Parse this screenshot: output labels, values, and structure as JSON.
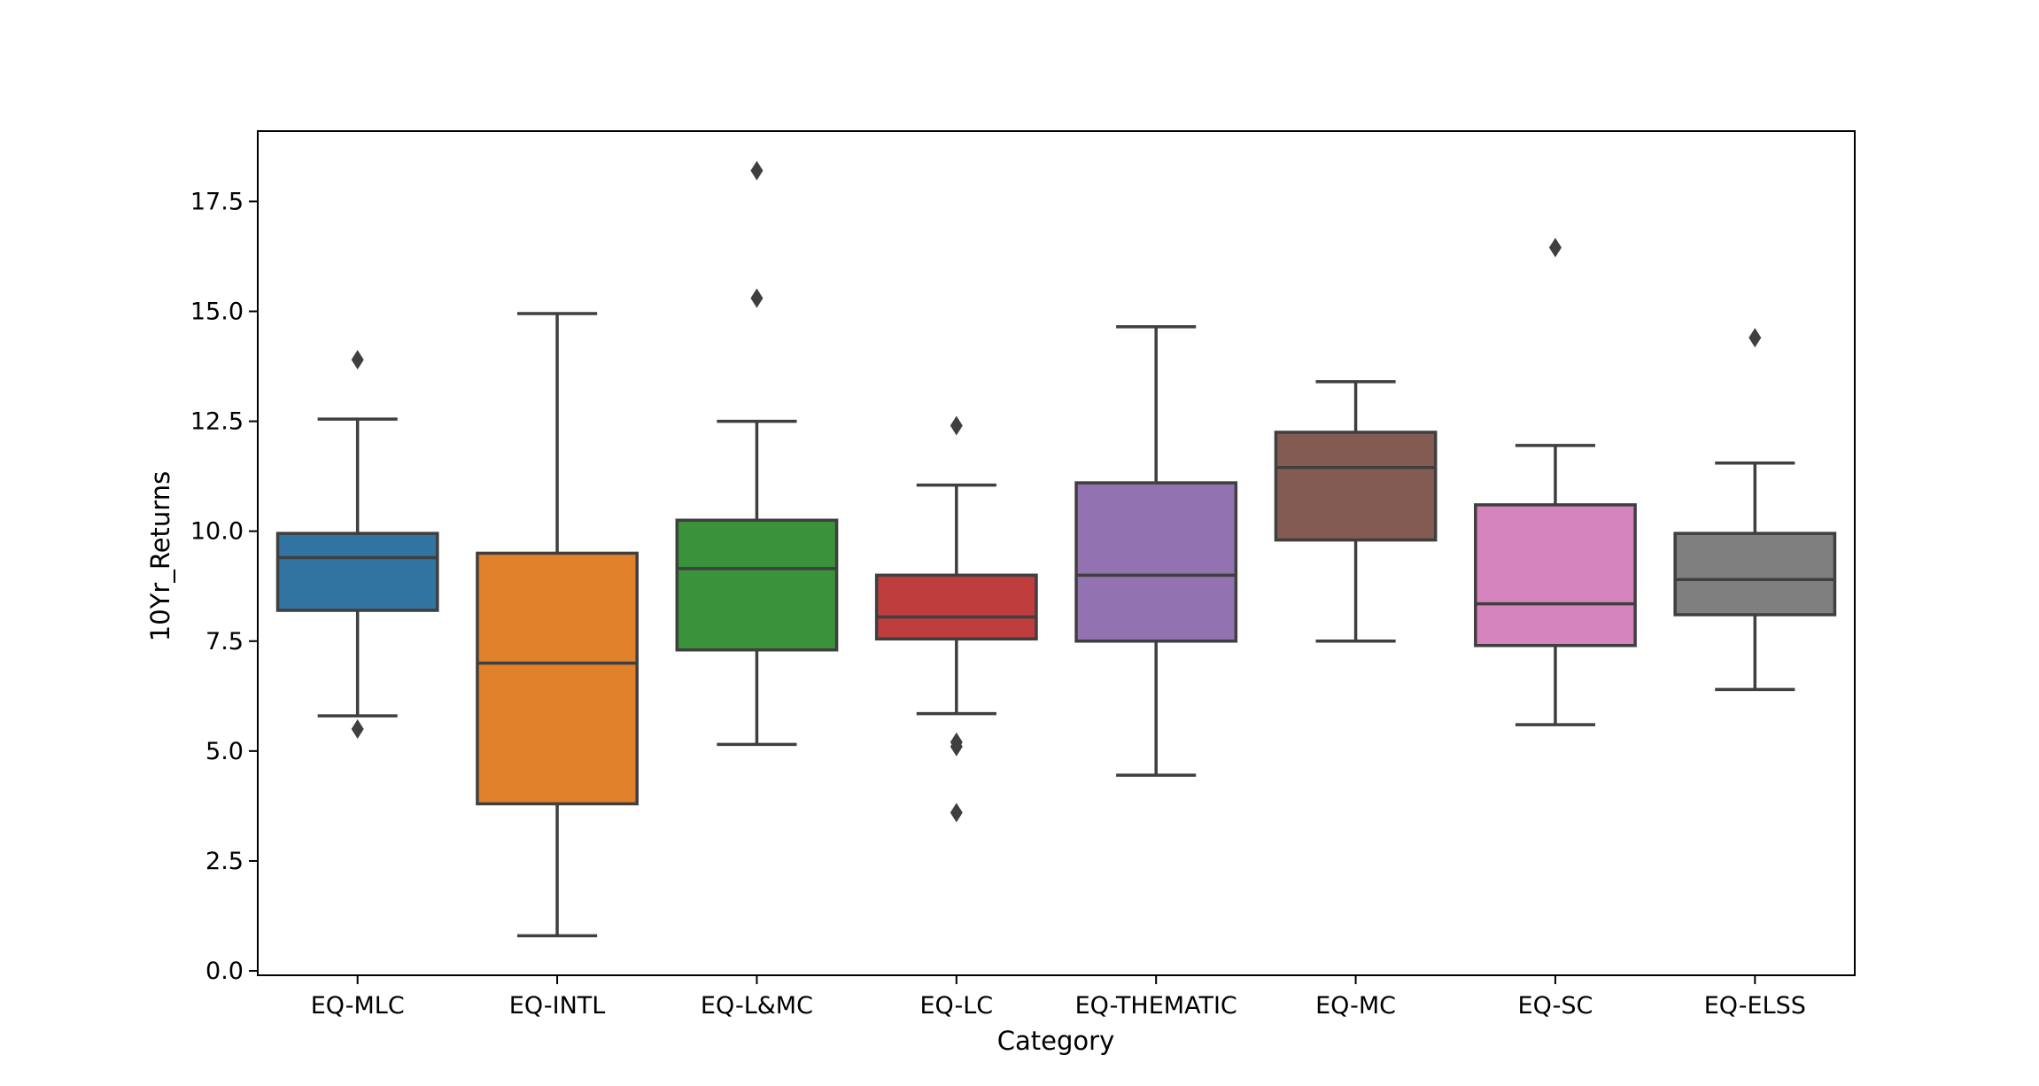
{
  "chart_data": {
    "type": "box",
    "xlabel": "Category",
    "ylabel": "10Yr_Returns",
    "ylim": [
      -0.1,
      19.1
    ],
    "yticks": [
      0.0,
      2.5,
      5.0,
      7.5,
      10.0,
      12.5,
      15.0,
      17.5
    ],
    "ytick_labels": [
      "0.0",
      "2.5",
      "5.0",
      "7.5",
      "10.0",
      "12.5",
      "15.0",
      "17.5"
    ],
    "grid": false,
    "categories": [
      "EQ-MLC",
      "EQ-INTL",
      "EQ-L&MC",
      "EQ-LC",
      "EQ-THEMATIC",
      "EQ-MC",
      "EQ-SC",
      "EQ-ELSS"
    ],
    "boxes": [
      {
        "category": "EQ-MLC",
        "whisker_low": 5.8,
        "q1": 8.2,
        "median": 9.4,
        "q3": 9.95,
        "whisker_high": 12.55,
        "outliers": [
          13.9,
          5.5
        ],
        "color": "#3274a1"
      },
      {
        "category": "EQ-INTL",
        "whisker_low": 0.8,
        "q1": 3.8,
        "median": 7.0,
        "q3": 9.5,
        "whisker_high": 14.95,
        "outliers": [],
        "color": "#e1812c"
      },
      {
        "category": "EQ-L&MC",
        "whisker_low": 5.15,
        "q1": 7.3,
        "median": 9.15,
        "q3": 10.25,
        "whisker_high": 12.5,
        "outliers": [
          18.2,
          15.3
        ],
        "color": "#3a923a"
      },
      {
        "category": "EQ-LC",
        "whisker_low": 5.85,
        "q1": 7.55,
        "median": 8.05,
        "q3": 9.0,
        "whisker_high": 11.05,
        "outliers": [
          12.4,
          5.2,
          5.1,
          3.6
        ],
        "color": "#c03d3e"
      },
      {
        "category": "EQ-THEMATIC",
        "whisker_low": 4.45,
        "q1": 7.5,
        "median": 9.0,
        "q3": 11.1,
        "whisker_high": 14.65,
        "outliers": [],
        "color": "#9372b2"
      },
      {
        "category": "EQ-MC",
        "whisker_low": 7.5,
        "q1": 9.8,
        "median": 11.45,
        "q3": 12.25,
        "whisker_high": 13.4,
        "outliers": [],
        "color": "#845b53"
      },
      {
        "category": "EQ-SC",
        "whisker_low": 5.6,
        "q1": 7.4,
        "median": 8.35,
        "q3": 10.6,
        "whisker_high": 11.95,
        "outliers": [
          16.45
        ],
        "color": "#d684bd"
      },
      {
        "category": "EQ-ELSS",
        "whisker_low": 6.4,
        "q1": 8.1,
        "median": 8.9,
        "q3": 9.95,
        "whisker_high": 11.55,
        "outliers": [
          14.4
        ],
        "color": "#7f7f7f"
      }
    ]
  }
}
